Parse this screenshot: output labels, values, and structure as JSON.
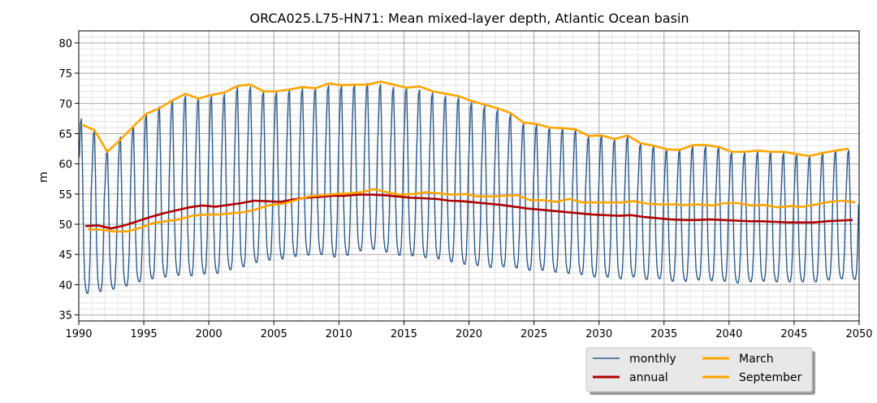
{
  "chart_data": {
    "type": "line",
    "title": "ORCA025.L75-HN71: Mean mixed-layer depth, Atlantic Ocean basin",
    "xlabel": "",
    "ylabel": "m",
    "xlim": [
      1990,
      2050
    ],
    "ylim": [
      34,
      82
    ],
    "x_ticks": [
      "1990",
      "1995",
      "2000",
      "2005",
      "2010",
      "2015",
      "2020",
      "2025",
      "2030",
      "2035",
      "2040",
      "2045",
      "2050"
    ],
    "y_ticks": [
      "35",
      "40",
      "45",
      "50",
      "55",
      "60",
      "65",
      "70",
      "75",
      "80"
    ],
    "grid": true,
    "legend_position": "bottom-right, below plot",
    "monthly_model": {
      "description": "seasonal cycle per year: first value Jan, winter max in March, summer min ~ Sept",
      "color": "#2b5a8c",
      "years": [
        1990,
        1991,
        1992,
        1993,
        1994,
        1995,
        1996,
        1997,
        1998,
        1999,
        2000,
        2001,
        2002,
        2003,
        2004,
        2005,
        2006,
        2007,
        2008,
        2009,
        2010,
        2011,
        2012,
        2013,
        2014,
        2015,
        2016,
        2017,
        2018,
        2019,
        2020,
        2021,
        2022,
        2023,
        2024,
        2025,
        2026,
        2027,
        2028,
        2029,
        2030,
        2031,
        2032,
        2033,
        2034,
        2035,
        2036,
        2037,
        2038,
        2039,
        2040,
        2041,
        2042,
        2043,
        2044,
        2045,
        2046,
        2047,
        2048,
        2049
      ],
      "march_max": [
        67.5,
        65.6,
        62.3,
        64.5,
        66.2,
        68.2,
        69.5,
        70.4,
        71.3,
        71.0,
        71.3,
        71.6,
        72.7,
        72.8,
        72.0,
        71.9,
        72.3,
        72.5,
        72.6,
        73.0,
        72.9,
        73.2,
        73.4,
        73.2,
        72.7,
        72.6,
        72.3,
        71.8,
        71.3,
        71.0,
        70.2,
        69.6,
        69.0,
        68.2,
        66.8,
        66.5,
        66.1,
        65.9,
        65.7,
        64.6,
        64.8,
        64.1,
        64.6,
        63.4,
        63.0,
        62.4,
        62.3,
        62.9,
        62.9,
        62.8,
        61.9,
        61.9,
        62.0,
        62.0,
        61.8,
        61.6,
        61.3,
        61.8,
        62.2,
        62.3
      ],
      "sept_min": [
        38.6,
        38.9,
        39.3,
        39.8,
        40.5,
        41.0,
        41.3,
        41.6,
        41.5,
        41.8,
        41.9,
        42.5,
        43.0,
        43.7,
        44.1,
        44.3,
        44.7,
        44.9,
        45.0,
        44.6,
        44.9,
        45.6,
        45.9,
        45.4,
        44.9,
        44.8,
        44.5,
        44.3,
        43.8,
        43.4,
        43.2,
        42.9,
        43.0,
        42.8,
        42.4,
        42.4,
        42.1,
        41.9,
        41.7,
        41.3,
        41.3,
        41.0,
        41.3,
        40.9,
        41.0,
        40.6,
        40.6,
        40.8,
        40.7,
        40.6,
        40.3,
        40.5,
        40.6,
        40.5,
        40.5,
        40.5,
        40.5,
        40.8,
        41.0,
        40.9
      ]
    },
    "series": [
      {
        "name": "annual",
        "color": "#b00000",
        "x": [
          1990.5,
          1991.5,
          1992.5,
          1993.5,
          1994.5,
          1995.5,
          1996.5,
          1997.5,
          1998.5,
          1999.5,
          2000.5,
          2001.5,
          2002.5,
          2003.5,
          2004.5,
          2005.5,
          2006.5,
          2007.5,
          2008.5,
          2009.5,
          2010.5,
          2011.5,
          2012.5,
          2013.5,
          2014.5,
          2015.5,
          2016.5,
          2017.5,
          2018.5,
          2019.5,
          2020.5,
          2021.5,
          2022.5,
          2023.5,
          2024.5,
          2025.5,
          2026.5,
          2027.5,
          2028.5,
          2029.5,
          2030.5,
          2031.5,
          2032.5,
          2033.5,
          2034.5,
          2035.5,
          2036.5,
          2037.5,
          2038.5,
          2039.5,
          2040.5,
          2041.5,
          2042.5,
          2043.5,
          2044.5,
          2045.5,
          2046.5,
          2047.5,
          2048.5,
          2049.5
        ],
        "y": [
          49.7,
          49.8,
          49.3,
          49.8,
          50.5,
          51.2,
          51.8,
          52.3,
          52.8,
          53.1,
          52.9,
          53.2,
          53.5,
          53.9,
          53.8,
          53.7,
          54.1,
          54.4,
          54.5,
          54.7,
          54.7,
          54.9,
          54.9,
          54.8,
          54.6,
          54.4,
          54.3,
          54.2,
          53.9,
          53.8,
          53.6,
          53.4,
          53.2,
          52.9,
          52.6,
          52.4,
          52.2,
          52.0,
          51.8,
          51.6,
          51.5,
          51.4,
          51.5,
          51.2,
          51.0,
          50.8,
          50.7,
          50.7,
          50.8,
          50.7,
          50.6,
          50.5,
          50.5,
          50.4,
          50.3,
          50.3,
          50.3,
          50.5,
          50.6,
          50.7
        ]
      },
      {
        "name": "March",
        "color": "#ffa500",
        "x": [
          1990.2,
          1991.2,
          1992.2,
          1993.2,
          1994.2,
          1995.2,
          1996.2,
          1997.2,
          1998.2,
          1999.2,
          2000.2,
          2001.2,
          2002.2,
          2003.2,
          2004.2,
          2005.2,
          2006.2,
          2007.2,
          2008.2,
          2009.2,
          2010.2,
          2011.2,
          2012.2,
          2013.2,
          2014.2,
          2015.2,
          2016.2,
          2017.2,
          2018.2,
          2019.2,
          2020.2,
          2021.2,
          2022.2,
          2023.2,
          2024.2,
          2025.2,
          2026.2,
          2027.2,
          2028.2,
          2029.2,
          2030.2,
          2031.2,
          2032.2,
          2033.2,
          2034.2,
          2035.2,
          2036.2,
          2037.2,
          2038.2,
          2039.2,
          2040.2,
          2041.2,
          2042.2,
          2043.2,
          2044.2,
          2045.2,
          2046.2,
          2047.2,
          2048.2,
          2049.2
        ],
        "y": [
          66.5,
          65.6,
          62.0,
          64.0,
          66.2,
          68.3,
          69.2,
          70.5,
          71.6,
          70.8,
          71.4,
          71.8,
          72.9,
          73.1,
          72.0,
          72.0,
          72.3,
          72.7,
          72.5,
          73.3,
          73.0,
          73.1,
          73.1,
          73.6,
          73.1,
          72.6,
          72.8,
          72.0,
          71.6,
          71.2,
          70.4,
          69.8,
          69.2,
          68.4,
          66.8,
          66.6,
          66.0,
          65.9,
          65.7,
          64.6,
          64.7,
          64.1,
          64.7,
          63.4,
          63.0,
          62.4,
          62.3,
          63.1,
          63.1,
          62.8,
          62.0,
          62.0,
          62.2,
          62.0,
          62.0,
          61.6,
          61.3,
          61.8,
          62.2,
          62.5
        ]
      },
      {
        "name": "September",
        "color": "#ffa500",
        "x": [
          1990.7,
          1991.7,
          1992.7,
          1993.7,
          1994.7,
          1995.7,
          1996.7,
          1997.7,
          1998.7,
          1999.7,
          2000.7,
          2001.7,
          2002.7,
          2003.7,
          2004.7,
          2005.7,
          2006.7,
          2007.7,
          2008.7,
          2009.7,
          2010.7,
          2011.7,
          2012.7,
          2013.7,
          2014.7,
          2015.7,
          2016.7,
          2017.7,
          2018.7,
          2019.7,
          2020.7,
          2021.7,
          2022.7,
          2023.7,
          2024.7,
          2025.7,
          2026.7,
          2027.7,
          2028.7,
          2029.7,
          2030.7,
          2031.7,
          2032.7,
          2033.7,
          2034.7,
          2035.7,
          2036.7,
          2037.7,
          2038.7,
          2039.7,
          2040.7,
          2041.7,
          2042.7,
          2043.7,
          2044.7,
          2045.7,
          2046.7,
          2047.7,
          2048.7,
          2049.7
        ],
        "y": [
          49.2,
          49.1,
          48.8,
          48.8,
          49.4,
          50.2,
          50.5,
          50.8,
          51.4,
          51.6,
          51.6,
          51.8,
          52.0,
          52.5,
          53.2,
          53.4,
          54.0,
          54.6,
          54.8,
          55.0,
          55.1,
          55.3,
          55.8,
          55.3,
          54.9,
          55.0,
          55.3,
          55.1,
          54.9,
          55.0,
          54.6,
          54.6,
          54.7,
          54.8,
          54.0,
          54.0,
          53.7,
          54.2,
          53.6,
          53.6,
          53.6,
          53.6,
          53.8,
          53.4,
          53.3,
          53.3,
          53.2,
          53.3,
          53.1,
          53.5,
          53.5,
          53.1,
          53.2,
          52.8,
          53.0,
          52.9,
          53.3,
          53.7,
          53.9,
          53.6
        ]
      }
    ],
    "legend": {
      "col1": [
        {
          "label": "monthly",
          "color": "#2b5a8c",
          "width": 1.5
        },
        {
          "label": "annual",
          "color": "#b00000",
          "width": 3
        }
      ],
      "col2": [
        {
          "label": "March",
          "color": "#ffa500",
          "width": 3
        },
        {
          "label": "September",
          "color": "#ffa500",
          "width": 3
        }
      ]
    }
  }
}
